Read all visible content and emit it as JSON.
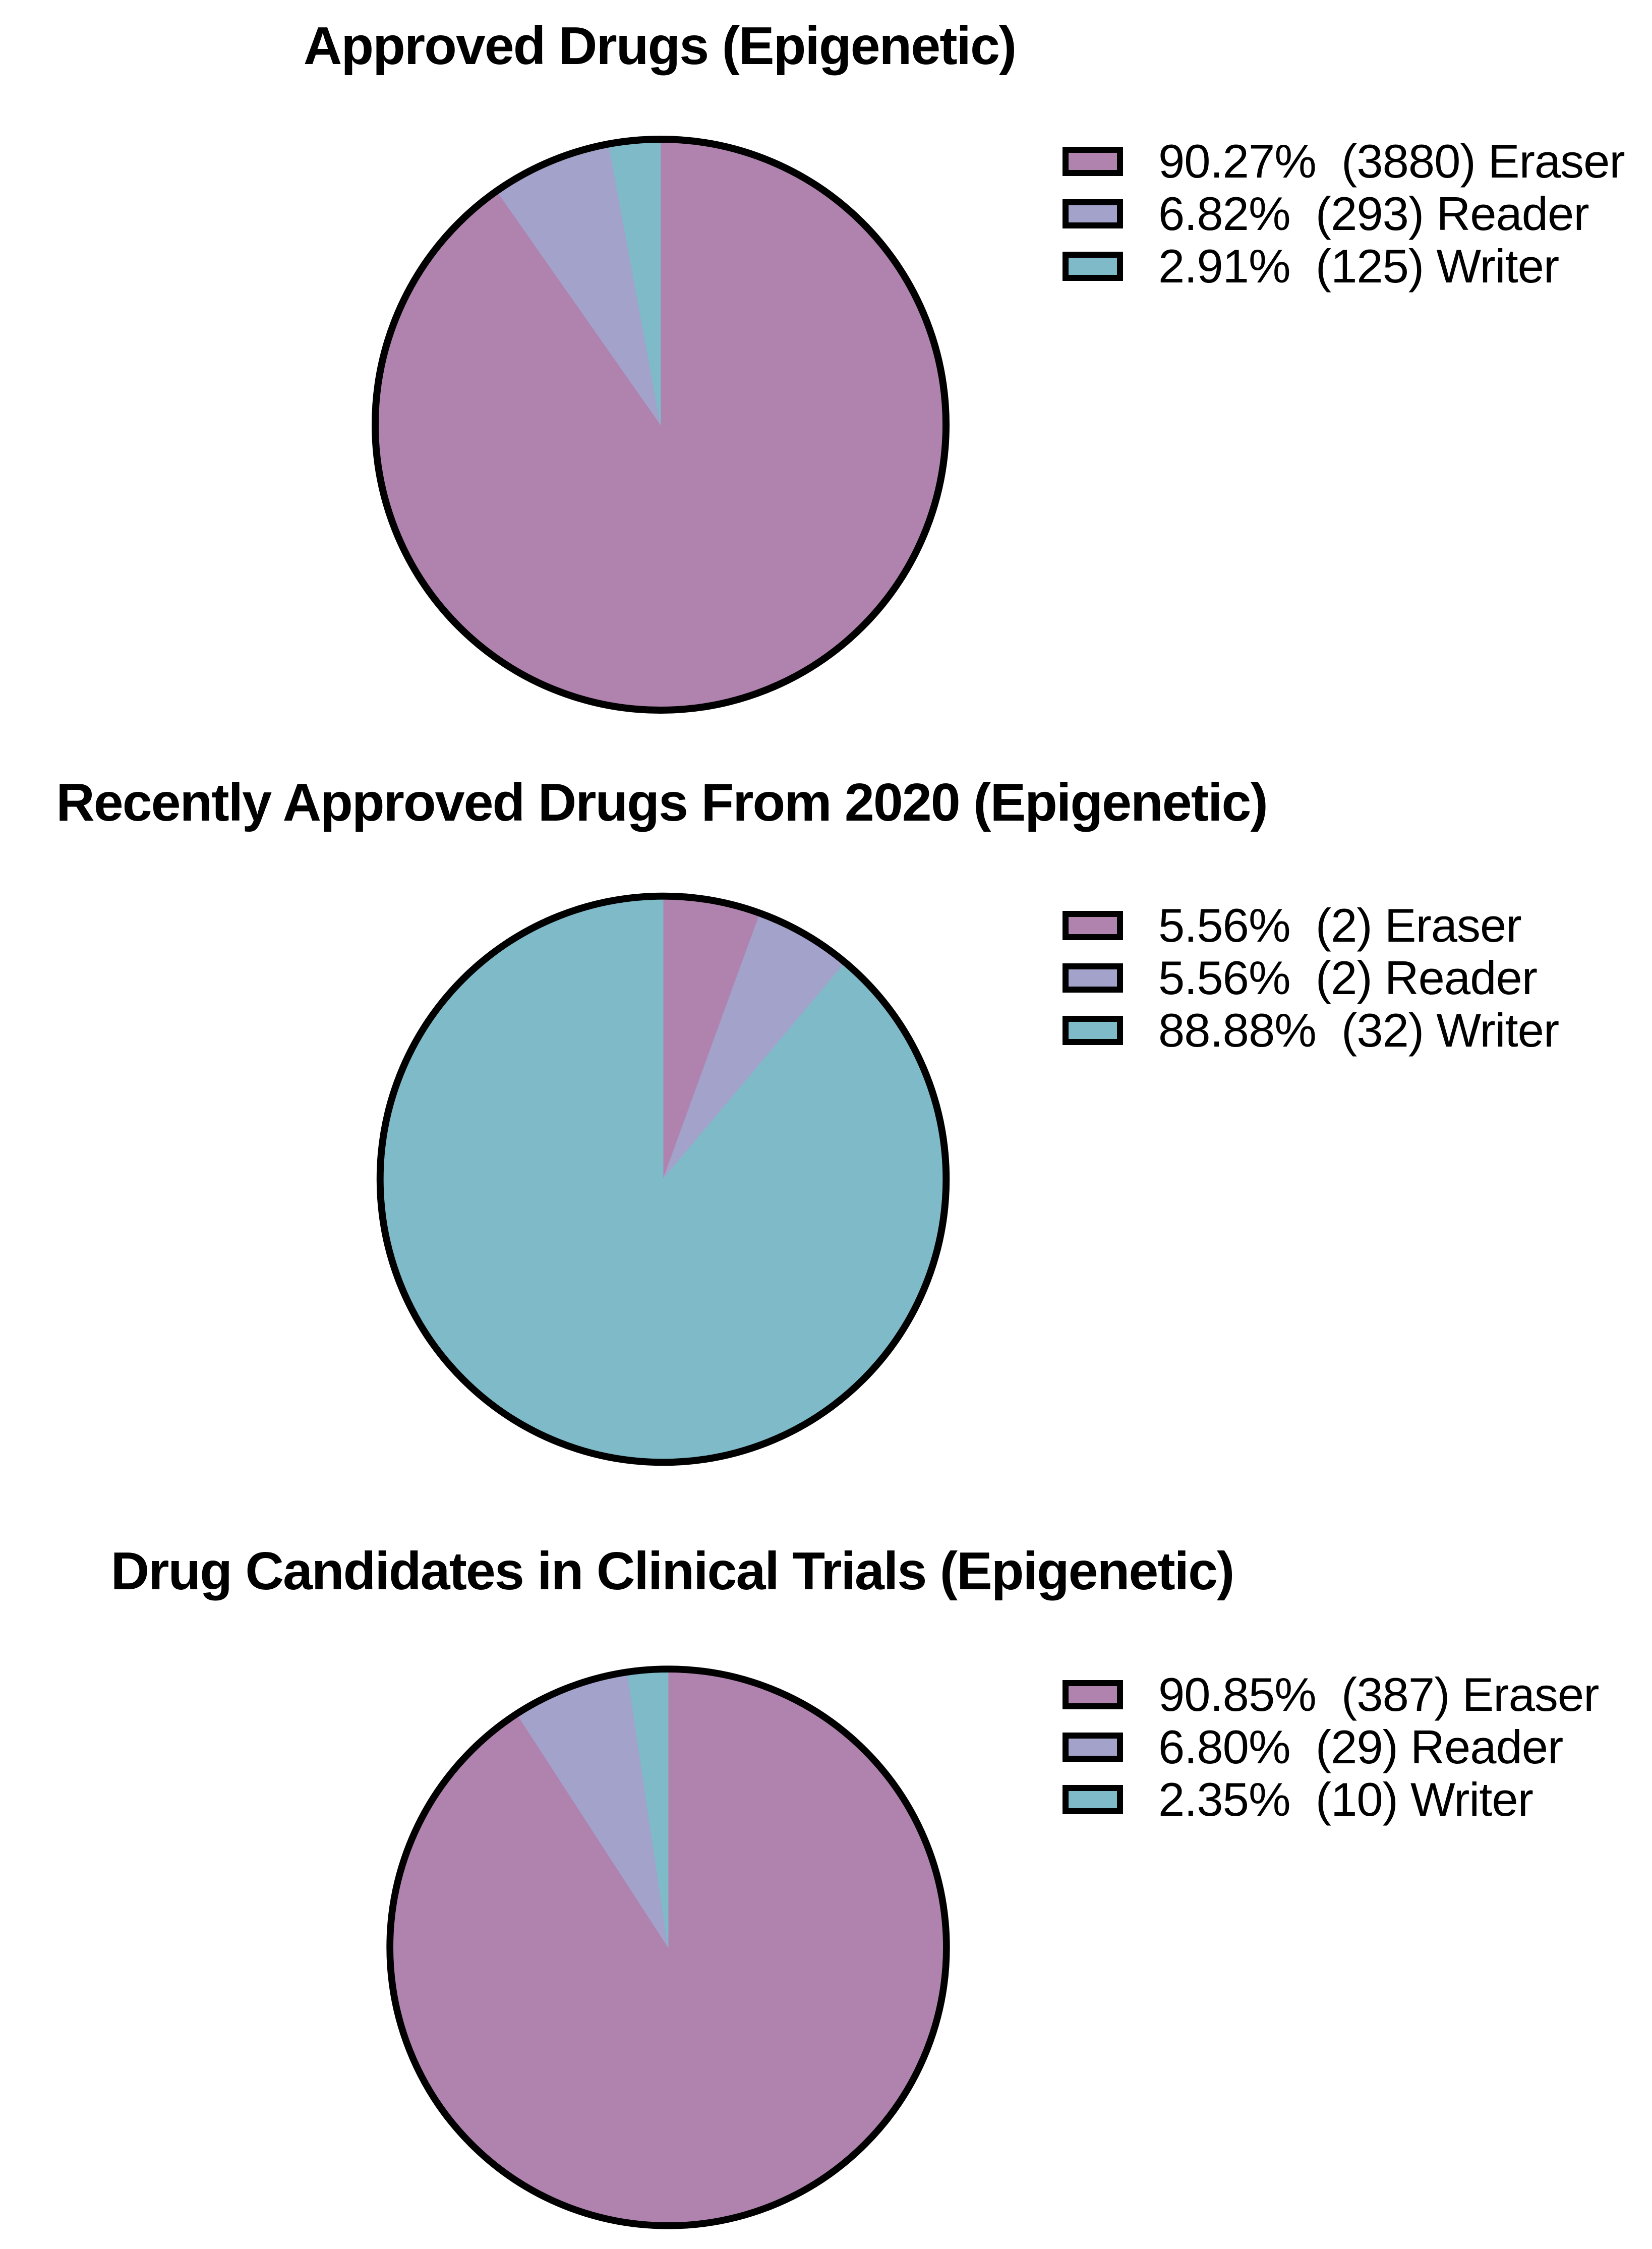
{
  "figure": {
    "background": "#ffffff",
    "text_color": "#000000",
    "outline_color": "#000000"
  },
  "chart_data": [
    {
      "type": "pie",
      "title": "Approved Drugs (Epigenetic)",
      "start_angle": "12 o'clock",
      "direction": "clockwise",
      "legend_position": "right",
      "slices": [
        {
          "label": "Eraser",
          "value": 90.27,
          "count": 3880,
          "percent_label": "90.27%",
          "count_label": "(3880)",
          "legend_label": "90.27%  (3880) Eraser",
          "color": "#B083AF"
        },
        {
          "label": "Reader",
          "value": 6.82,
          "count": 293,
          "percent_label": "6.82%",
          "count_label": "(293)",
          "legend_label": "6.82%  (293) Reader",
          "color": "#A3A2CA"
        },
        {
          "label": "Writer",
          "value": 2.91,
          "count": 125,
          "percent_label": "2.91%",
          "count_label": "(125)",
          "legend_label": "2.91%  (125) Writer",
          "color": "#7EBAC8"
        }
      ]
    },
    {
      "type": "pie",
      "title": "Recently Approved Drugs From 2020 (Epigenetic)",
      "start_angle": "12 o'clock",
      "direction": "clockwise",
      "legend_position": "right",
      "slices": [
        {
          "label": "Eraser",
          "value": 5.56,
          "count": 2,
          "percent_label": "5.56%",
          "count_label": "(2)",
          "legend_label": "5.56%  (2) Eraser",
          "color": "#B083AF"
        },
        {
          "label": "Reader",
          "value": 5.56,
          "count": 2,
          "percent_label": "5.56%",
          "count_label": "(2)",
          "legend_label": "5.56%  (2) Reader",
          "color": "#A3A2CA"
        },
        {
          "label": "Writer",
          "value": 88.88,
          "count": 32,
          "percent_label": "88.88%",
          "count_label": "(32)",
          "legend_label": "88.88%  (32) Writer",
          "color": "#7EBAC8"
        }
      ]
    },
    {
      "type": "pie",
      "title": "Drug Candidates in Clinical Trials (Epigenetic)",
      "start_angle": "12 o'clock",
      "direction": "clockwise",
      "legend_position": "right",
      "slices": [
        {
          "label": "Eraser",
          "value": 90.85,
          "count": 387,
          "percent_label": "90.85%",
          "count_label": "(387)",
          "legend_label": "90.85%  (387) Eraser",
          "color": "#B083AF"
        },
        {
          "label": "Reader",
          "value": 6.8,
          "count": 29,
          "percent_label": "6.80%",
          "count_label": "(29)",
          "legend_label": "6.80%  (29) Reader",
          "color": "#A3A2CA"
        },
        {
          "label": "Writer",
          "value": 2.35,
          "count": 10,
          "percent_label": "2.35%",
          "count_label": "(10)",
          "legend_label": "2.35%  (10) Writer",
          "color": "#7EBAC8"
        }
      ]
    }
  ]
}
